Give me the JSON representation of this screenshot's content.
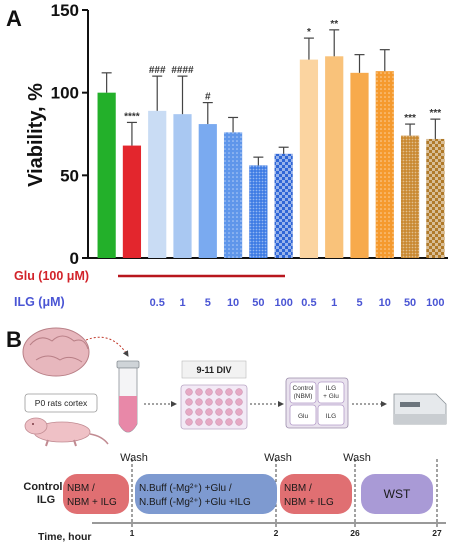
{
  "panel_a": {
    "letter": "A",
    "chart_data": {
      "type": "bar",
      "ylabel": "Viability, %",
      "ylim": [
        0,
        150
      ],
      "yticks": [
        0,
        50,
        100,
        150
      ],
      "grid": false,
      "bars": [
        {
          "value": 100,
          "err": 12,
          "sig": "",
          "color": "#23b02a",
          "pattern": "solid"
        },
        {
          "value": 68,
          "err": 14,
          "sig": "****",
          "color": "#e3262d",
          "pattern": "solid"
        },
        {
          "value": 89,
          "err": 21,
          "sig": "###",
          "color": "#c9dcf4",
          "pattern": "solid"
        },
        {
          "value": 87,
          "err": 23,
          "sig": "####",
          "color": "#a9c8f2",
          "pattern": "solid"
        },
        {
          "value": 81,
          "err": 13,
          "sig": "#",
          "color": "#7aaaf0",
          "pattern": "solid"
        },
        {
          "value": 76,
          "err": 9,
          "sig": "",
          "color": "#5f96ea",
          "pattern": "dots"
        },
        {
          "value": 56,
          "err": 5,
          "sig": "",
          "color": "#3d7be4",
          "pattern": "dense"
        },
        {
          "value": 63,
          "err": 4,
          "sig": "",
          "color": "#2f66d6",
          "pattern": "check"
        },
        {
          "value": 120,
          "err": 13,
          "sig": "*",
          "color": "#fbd4a0",
          "pattern": "solid"
        },
        {
          "value": 122,
          "err": 16,
          "sig": "**",
          "color": "#f9c27a",
          "pattern": "solid"
        },
        {
          "value": 112,
          "err": 11,
          "sig": "",
          "color": "#f7aa4c",
          "pattern": "solid"
        },
        {
          "value": 113,
          "err": 13,
          "sig": "",
          "color": "#f59a2e",
          "pattern": "dots"
        },
        {
          "value": 74,
          "err": 7,
          "sig": "***",
          "color": "#c98830",
          "pattern": "dense"
        },
        {
          "value": 72,
          "err": 12,
          "sig": "***",
          "color": "#b07a2a",
          "pattern": "check"
        }
      ],
      "glu_label": "Glu (100 μM)",
      "ilg_label": "ILG (μM)",
      "ilg_doses": [
        "",
        "",
        "0.5",
        "1",
        "5",
        "10",
        "50",
        "100",
        "0.5",
        "1",
        "5",
        "10",
        "50",
        "100"
      ]
    }
  },
  "panel_b": {
    "letter": "B",
    "source_label": "P0 rats cortex",
    "div_label": "9-11 DIV",
    "wells": [
      "Control (NBM)",
      "ILG + Glu",
      "Glu",
      "ILG"
    ],
    "row_label_1": "Control /",
    "row_label_2": "ILG",
    "time_axis_label": "Time, hour",
    "wash_label": "Wash",
    "time_ticks": [
      "1",
      "2",
      "26",
      "27"
    ],
    "steps": [
      {
        "line1": "NBM /",
        "line2": "NBM + ILG",
        "color": "#e06f72"
      },
      {
        "line1": "N.Buff (-Mg²⁺) +Glu /",
        "line2": "N.Buff (-Mg²⁺) +Glu +ILG",
        "color": "#7e9ad0"
      },
      {
        "line1": "NBM /",
        "line2": "NBM + ILG",
        "color": "#e06f72"
      },
      {
        "line1": "WST",
        "line2": "",
        "color": "#a99ad6"
      }
    ]
  }
}
